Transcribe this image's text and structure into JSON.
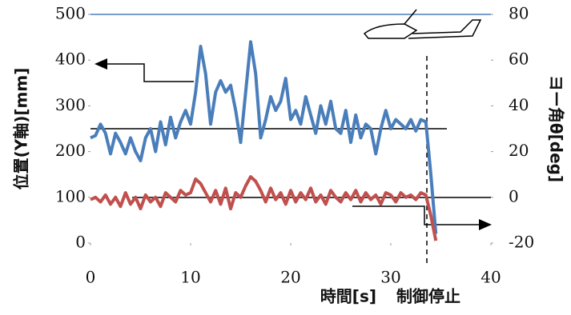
{
  "chart_data": {
    "type": "line",
    "x_label": "時間[s]",
    "y_label": "位置(Y軸)[mm]",
    "y2_label": "ヨー角θ[deg]",
    "annotation": "制御停止",
    "x": [
      0,
      0.5,
      1,
      1.5,
      2,
      2.5,
      3,
      3.5,
      4,
      4.5,
      5,
      5.5,
      6,
      6.5,
      7,
      7.5,
      8,
      8.5,
      9,
      9.5,
      10,
      10.5,
      11,
      11.5,
      12,
      12.5,
      13,
      13.5,
      14,
      14.5,
      15,
      15.5,
      16,
      16.5,
      17,
      17.5,
      18,
      18.5,
      19,
      19.5,
      20,
      20.5,
      21,
      21.5,
      22,
      22.5,
      23,
      23.5,
      24,
      24.5,
      25,
      25.5,
      26,
      26.5,
      27,
      27.5,
      28,
      28.5,
      29,
      29.5,
      30,
      30.5,
      31,
      31.5,
      32,
      32.5,
      33,
      33.5,
      34,
      34.5
    ],
    "series": [
      {
        "color": "#4a7ebb",
        "axis": "y",
        "values": [
          230,
          235,
          260,
          240,
          195,
          240,
          220,
          195,
          230,
          200,
          180,
          230,
          250,
          200,
          265,
          215,
          275,
          230,
          265,
          290,
          260,
          330,
          430,
          370,
          260,
          330,
          355,
          330,
          345,
          290,
          220,
          330,
          440,
          370,
          230,
          270,
          320,
          290,
          310,
          360,
          270,
          290,
          260,
          320,
          280,
          240,
          300,
          260,
          310,
          250,
          240,
          290,
          220,
          280,
          230,
          260,
          250,
          195,
          250,
          290,
          250,
          270,
          260,
          250,
          270,
          245,
          270,
          265,
          150,
          20
        ]
      },
      {
        "color": "#c0504d",
        "axis": "y2",
        "values": [
          -1,
          0,
          -2,
          1,
          -3,
          0,
          -4,
          2,
          -3,
          0,
          -5,
          1,
          -2,
          0,
          -4,
          2,
          0,
          -2,
          3,
          1,
          2,
          8,
          6,
          2,
          -2,
          3,
          -3,
          4,
          -5,
          2,
          0,
          5,
          9,
          7,
          3,
          -2,
          4,
          -1,
          2,
          -3,
          3,
          -2,
          2,
          -1,
          4,
          -2,
          1,
          -3,
          3,
          0,
          -2,
          2,
          -1,
          3,
          -2,
          2,
          -1,
          1,
          -3,
          2,
          1,
          -2,
          2,
          0,
          1,
          -1,
          2,
          1,
          -8,
          -19
        ]
      }
    ],
    "xlim": [
      0,
      40
    ],
    "xticks": [
      0,
      10,
      20,
      30,
      40
    ],
    "ylim": [
      0,
      500
    ],
    "yticks": [
      0,
      100,
      200,
      300,
      400,
      500
    ],
    "y2lim": [
      -20,
      80
    ],
    "y2ticks": [
      -20,
      0,
      20,
      40,
      60,
      80
    ]
  }
}
